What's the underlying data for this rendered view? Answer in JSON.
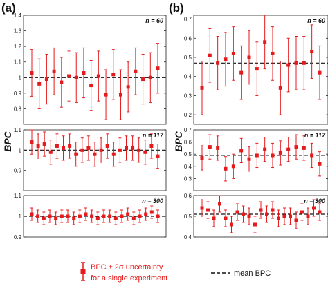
{
  "labels": {
    "panel_a": "(a)",
    "panel_b": "(b)",
    "ylabel_a": "BPC",
    "ylabel_b": "BPC",
    "legend_errorbar_line1": "BPC ± 2σ uncertainty",
    "legend_errorbar_line2": "for a single experiment",
    "legend_mean": "mean BPC"
  },
  "colors": {
    "marker": "#e41a1c",
    "mean_line": "#111111"
  },
  "chart_data": [
    {
      "panel": "a",
      "type": "scatter",
      "annotation": "n = 60",
      "ylim": [
        0.7,
        1.4
      ],
      "yticks": [
        "0.8",
        "0.9",
        "1",
        "1.1",
        "1.2",
        "1.3",
        "1.4"
      ],
      "mean": 1.0,
      "points": [
        {
          "y": 1.03,
          "err": 0.15
        },
        {
          "y": 0.96,
          "err": 0.16
        },
        {
          "y": 0.99,
          "err": 0.16
        },
        {
          "y": 1.04,
          "err": 0.15
        },
        {
          "y": 0.97,
          "err": 0.16
        },
        {
          "y": 1.01,
          "err": 0.16
        },
        {
          "y": 1.0,
          "err": 0.16
        },
        {
          "y": 1.03,
          "err": 0.16
        },
        {
          "y": 0.95,
          "err": 0.16
        },
        {
          "y": 1.01,
          "err": 0.16
        },
        {
          "y": 0.89,
          "err": 0.16
        },
        {
          "y": 1.02,
          "err": 0.16
        },
        {
          "y": 0.89,
          "err": 0.16
        },
        {
          "y": 0.94,
          "err": 0.16
        },
        {
          "y": 1.04,
          "err": 0.15
        },
        {
          "y": 0.99,
          "err": 0.16
        },
        {
          "y": 1.0,
          "err": 0.16
        },
        {
          "y": 1.06,
          "err": 0.16
        }
      ]
    },
    {
      "panel": "a",
      "type": "scatter",
      "annotation": "n = 117",
      "ylim": [
        0.8,
        1.1
      ],
      "yticks": [
        "0.9",
        "1",
        "1.1"
      ],
      "mean": 1.0,
      "points": [
        {
          "y": 1.04,
          "err": 0.06
        },
        {
          "y": 1.02,
          "err": 0.06
        },
        {
          "y": 1.03,
          "err": 0.06
        },
        {
          "y": 0.99,
          "err": 0.06
        },
        {
          "y": 1.02,
          "err": 0.06
        },
        {
          "y": 1.01,
          "err": 0.06
        },
        {
          "y": 1.02,
          "err": 0.06
        },
        {
          "y": 0.98,
          "err": 0.06
        },
        {
          "y": 1.0,
          "err": 0.06
        },
        {
          "y": 1.01,
          "err": 0.06
        },
        {
          "y": 0.98,
          "err": 0.06
        },
        {
          "y": 1.0,
          "err": 0.06
        },
        {
          "y": 1.02,
          "err": 0.06
        },
        {
          "y": 0.98,
          "err": 0.06
        },
        {
          "y": 1.0,
          "err": 0.06
        },
        {
          "y": 1.01,
          "err": 0.06
        },
        {
          "y": 1.01,
          "err": 0.06
        },
        {
          "y": 1.0,
          "err": 0.06
        },
        {
          "y": 0.99,
          "err": 0.06
        },
        {
          "y": 1.02,
          "err": 0.06
        },
        {
          "y": 0.97,
          "err": 0.06
        }
      ]
    },
    {
      "panel": "a",
      "type": "scatter",
      "annotation": "n = 300",
      "ylim": [
        0.9,
        1.1
      ],
      "yticks": [
        "0.9",
        "1",
        "1.1"
      ],
      "mean": 1.0,
      "points": [
        {
          "y": 1.01,
          "err": 0.03
        },
        {
          "y": 1.0,
          "err": 0.03
        },
        {
          "y": 0.99,
          "err": 0.03
        },
        {
          "y": 1.0,
          "err": 0.03
        },
        {
          "y": 0.99,
          "err": 0.03
        },
        {
          "y": 1.0,
          "err": 0.03
        },
        {
          "y": 1.0,
          "err": 0.03
        },
        {
          "y": 0.99,
          "err": 0.03
        },
        {
          "y": 1.0,
          "err": 0.03
        },
        {
          "y": 1.01,
          "err": 0.03
        },
        {
          "y": 1.0,
          "err": 0.03
        },
        {
          "y": 0.99,
          "err": 0.03
        },
        {
          "y": 1.0,
          "err": 0.03
        },
        {
          "y": 1.0,
          "err": 0.03
        },
        {
          "y": 0.99,
          "err": 0.03
        },
        {
          "y": 1.0,
          "err": 0.03
        },
        {
          "y": 1.01,
          "err": 0.03
        },
        {
          "y": 0.99,
          "err": 0.03
        },
        {
          "y": 1.0,
          "err": 0.03
        },
        {
          "y": 1.01,
          "err": 0.03
        },
        {
          "y": 1.02,
          "err": 0.03
        },
        {
          "y": 1.0,
          "err": 0.03
        }
      ]
    },
    {
      "panel": "b",
      "type": "scatter",
      "annotation": "n = 60",
      "ylim": [
        0.15,
        0.72
      ],
      "yticks": [
        "0.2",
        "0.3",
        "0.4",
        "0.5",
        "0.6",
        "0.7"
      ],
      "mean": 0.47,
      "points": [
        {
          "y": 0.34,
          "err": 0.14
        },
        {
          "y": 0.51,
          "err": 0.14
        },
        {
          "y": 0.47,
          "err": 0.14
        },
        {
          "y": 0.49,
          "err": 0.14
        },
        {
          "y": 0.52,
          "err": 0.14
        },
        {
          "y": 0.42,
          "err": 0.14
        },
        {
          "y": 0.5,
          "err": 0.14
        },
        {
          "y": 0.44,
          "err": 0.14
        },
        {
          "y": 0.58,
          "err": 0.14
        },
        {
          "y": 0.52,
          "err": 0.14
        },
        {
          "y": 0.34,
          "err": 0.14
        },
        {
          "y": 0.46,
          "err": 0.14
        },
        {
          "y": 0.47,
          "err": 0.14
        },
        {
          "y": 0.47,
          "err": 0.14
        },
        {
          "y": 0.53,
          "err": 0.14
        },
        {
          "y": 0.42,
          "err": 0.14
        }
      ]
    },
    {
      "panel": "b",
      "type": "scatter",
      "annotation": "n = 117",
      "ylim": [
        0.2,
        0.7
      ],
      "yticks": [
        "0.3",
        "0.4",
        "0.5",
        "0.6",
        "0.7"
      ],
      "mean": 0.49,
      "points": [
        {
          "y": 0.47,
          "err": 0.1
        },
        {
          "y": 0.56,
          "err": 0.1
        },
        {
          "y": 0.55,
          "err": 0.1
        },
        {
          "y": 0.38,
          "err": 0.1
        },
        {
          "y": 0.4,
          "err": 0.1
        },
        {
          "y": 0.53,
          "err": 0.1
        },
        {
          "y": 0.46,
          "err": 0.1
        },
        {
          "y": 0.49,
          "err": 0.1
        },
        {
          "y": 0.54,
          "err": 0.1
        },
        {
          "y": 0.49,
          "err": 0.1
        },
        {
          "y": 0.51,
          "err": 0.1
        },
        {
          "y": 0.54,
          "err": 0.1
        },
        {
          "y": 0.56,
          "err": 0.1
        },
        {
          "y": 0.55,
          "err": 0.1
        },
        {
          "y": 0.49,
          "err": 0.1
        },
        {
          "y": 0.42,
          "err": 0.1
        }
      ]
    },
    {
      "panel": "b",
      "type": "scatter",
      "annotation": "n = 300",
      "ylim": [
        0.4,
        0.6
      ],
      "yticks": [
        "0.4",
        "0.5",
        "0.6"
      ],
      "mean": 0.51,
      "points": [
        {
          "y": 0.54,
          "err": 0.04
        },
        {
          "y": 0.53,
          "err": 0.04
        },
        {
          "y": 0.49,
          "err": 0.04
        },
        {
          "y": 0.56,
          "err": 0.04
        },
        {
          "y": 0.49,
          "err": 0.04
        },
        {
          "y": 0.46,
          "err": 0.04
        },
        {
          "y": 0.52,
          "err": 0.04
        },
        {
          "y": 0.51,
          "err": 0.04
        },
        {
          "y": 0.5,
          "err": 0.04
        },
        {
          "y": 0.46,
          "err": 0.04
        },
        {
          "y": 0.53,
          "err": 0.04
        },
        {
          "y": 0.51,
          "err": 0.04
        },
        {
          "y": 0.53,
          "err": 0.04
        },
        {
          "y": 0.49,
          "err": 0.04
        },
        {
          "y": 0.5,
          "err": 0.04
        },
        {
          "y": 0.5,
          "err": 0.04
        },
        {
          "y": 0.48,
          "err": 0.04
        },
        {
          "y": 0.52,
          "err": 0.04
        },
        {
          "y": 0.5,
          "err": 0.04
        },
        {
          "y": 0.54,
          "err": 0.04
        },
        {
          "y": 0.52,
          "err": 0.04
        }
      ]
    }
  ]
}
